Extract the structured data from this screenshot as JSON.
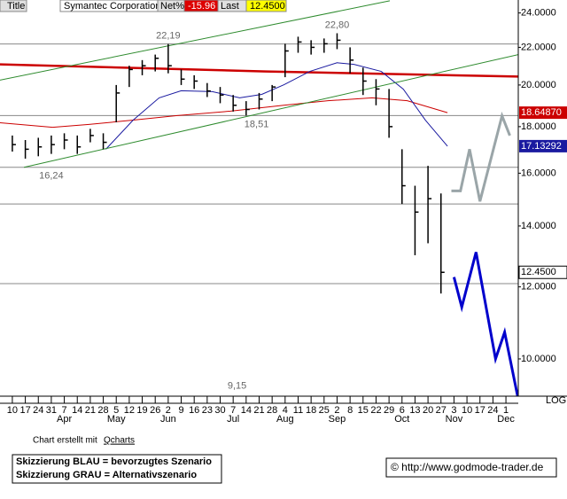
{
  "header": {
    "title": "Title",
    "name": "Symantec Corporation",
    "net_label": "Net%",
    "net_pct": -15.96,
    "last_label": "Last",
    "last": "12.4500"
  },
  "footer": {
    "credit": "Chart erstellt mit",
    "tool": "Qcharts",
    "legend_blue": "Skizzierung BLAU = bevorzugtes Szenario",
    "legend_gray": "Skizzierung GRAU = Alternativszenario",
    "url": "© http://www.godmode-trader.de"
  },
  "chart_data": {
    "type": "ohlc",
    "title": "Symantec Corporation",
    "log_scale": true,
    "scale_label": "LOG",
    "categories": [
      "10",
      "17",
      "24",
      "31",
      "7",
      "14",
      "21",
      "28",
      "5",
      "12",
      "19",
      "26",
      "2",
      "9",
      "16",
      "23",
      "30",
      "7",
      "14",
      "21",
      "28",
      "4",
      "11",
      "18",
      "25",
      "2",
      "8",
      "15",
      "22",
      "29",
      "6",
      "13",
      "20",
      "27",
      "3",
      "10",
      "17",
      "24",
      "1"
    ],
    "month_labels": [
      {
        "label": "Apr",
        "week": 4
      },
      {
        "label": "May",
        "week": 8
      },
      {
        "label": "Jun",
        "week": 12
      },
      {
        "label": "Jul",
        "week": 17
      },
      {
        "label": "Aug",
        "week": 21
      },
      {
        "label": "Sep",
        "week": 25
      },
      {
        "label": "Oct",
        "week": 30
      },
      {
        "label": "Nov",
        "week": 34
      },
      {
        "label": "Dec",
        "week": 38
      }
    ],
    "high": [
      17.6,
      17.4,
      17.5,
      17.6,
      17.7,
      17.6,
      17.9,
      17.7,
      20.0,
      21.0,
      21.3,
      21.6,
      22.19,
      20.8,
      20.5,
      20.1,
      19.9,
      19.5,
      19.2,
      19.6,
      20.0,
      22.2,
      22.6,
      22.4,
      22.5,
      22.8,
      22.0,
      20.9,
      20.3,
      19.8,
      17.0,
      15.5,
      16.3,
      15.2,
      null,
      null,
      null,
      null,
      null
    ],
    "low": [
      16.9,
      16.6,
      16.7,
      16.8,
      17.0,
      16.8,
      17.3,
      17.0,
      18.2,
      19.9,
      20.5,
      20.7,
      20.6,
      20.0,
      19.8,
      19.4,
      19.1,
      18.7,
      18.51,
      18.8,
      19.2,
      20.4,
      21.7,
      21.6,
      21.7,
      21.9,
      20.6,
      19.5,
      19.0,
      17.5,
      14.8,
      13.0,
      13.4,
      11.8,
      null,
      null,
      null,
      null,
      null
    ],
    "close": [
      17.2,
      17.0,
      17.1,
      17.2,
      17.4,
      17.1,
      17.6,
      17.3,
      19.6,
      20.8,
      21.0,
      21.4,
      21.0,
      20.3,
      20.2,
      19.7,
      19.5,
      19.0,
      18.8,
      19.3,
      19.9,
      21.8,
      22.3,
      22.0,
      22.2,
      22.4,
      21.3,
      20.2,
      19.8,
      18.0,
      15.5,
      14.5,
      15.0,
      12.45,
      null,
      null,
      null,
      null,
      null
    ],
    "bar_color": "#000000",
    "last_close_label": "12.4500",
    "xlim": [
      -0.95,
      38.95
    ],
    "ylim": [
      9.1,
      24.8
    ],
    "yticks": [
      {
        "value": 10,
        "label": "10.0000"
      },
      {
        "value": 12,
        "label": "12.0000"
      },
      {
        "value": 14,
        "label": "14.0000"
      },
      {
        "value": 16,
        "label": "16.0000"
      },
      {
        "value": 18,
        "label": "18.0000"
      },
      {
        "value": 20,
        "label": "20.0000"
      },
      {
        "value": 22,
        "label": "22.0000"
      },
      {
        "value": 24,
        "label": "24.0000"
      }
    ],
    "levels": [
      22.19,
      18.51,
      16.24,
      14.8,
      12.1
    ],
    "level_color": "#888888",
    "lines": [
      {
        "color": "#cc0000",
        "width": 2.5,
        "x": [
          -0.95,
          19.5,
          38.95
        ],
        "values": [
          21.07,
          20.7,
          20.43
        ]
      },
      {
        "color": "#cc0000",
        "width": 1,
        "x": [
          -0.95,
          3.1,
          5.9,
          9.3,
          12.7,
          16.8,
          20.9,
          24.3,
          27.7,
          30.4,
          33.5
        ],
        "values": [
          18.18,
          17.97,
          18.1,
          18.3,
          18.51,
          18.72,
          19.0,
          19.22,
          19.36,
          19.22,
          18.6487
        ],
        "end_label": "18.64870"
      },
      {
        "color": "#1a1aa0",
        "width": 1,
        "x": [
          7.2,
          9.3,
          11.3,
          13.0,
          15.4,
          17.5,
          19.2,
          20.9,
          22.9,
          25.0,
          26.3,
          28.4,
          30.1,
          31.8,
          33.5
        ],
        "values": [
          17.0,
          18.3,
          19.36,
          19.71,
          19.67,
          19.36,
          19.53,
          20.01,
          20.7,
          21.16,
          21.07,
          20.7,
          19.79,
          18.3,
          17.13292
        ],
        "end_label": "17.13292"
      },
      {
        "color": "#2e8b2e",
        "width": 1,
        "x": [
          0.9,
          38.95
        ],
        "values": [
          16.24,
          21.6
        ]
      },
      {
        "color": "#2e8b2e",
        "width": 1,
        "x": [
          -0.95,
          29.06
        ],
        "values": [
          20.25,
          24.75
        ]
      },
      {
        "color": "#0000cc",
        "width": 3,
        "x": [
          34.0,
          34.6,
          35.7,
          37.2,
          37.9,
          38.9
        ],
        "values": [
          12.3,
          11.4,
          13.1,
          10.0,
          10.7,
          9.1
        ]
      },
      {
        "color": "#9aa5a8",
        "width": 3,
        "x": [
          33.8,
          34.5,
          35.2,
          36.0,
          37.7,
          38.3
        ],
        "values": [
          15.3,
          15.3,
          17.0,
          14.9,
          18.5,
          17.6
        ]
      }
    ],
    "annotations": [
      {
        "text": "22,19",
        "week": 12,
        "value": 22.19,
        "placement": "above"
      },
      {
        "text": "22,80",
        "week": 25,
        "value": 22.8,
        "placement": "above"
      },
      {
        "text": "16,24",
        "week": 3,
        "value": 16.24,
        "placement": "below"
      },
      {
        "text": "18,51",
        "week": 18.8,
        "value": 18.51,
        "placement": "below"
      },
      {
        "text": "9,15",
        "week": 17.3,
        "value": 9.15,
        "placement": "above"
      }
    ]
  }
}
